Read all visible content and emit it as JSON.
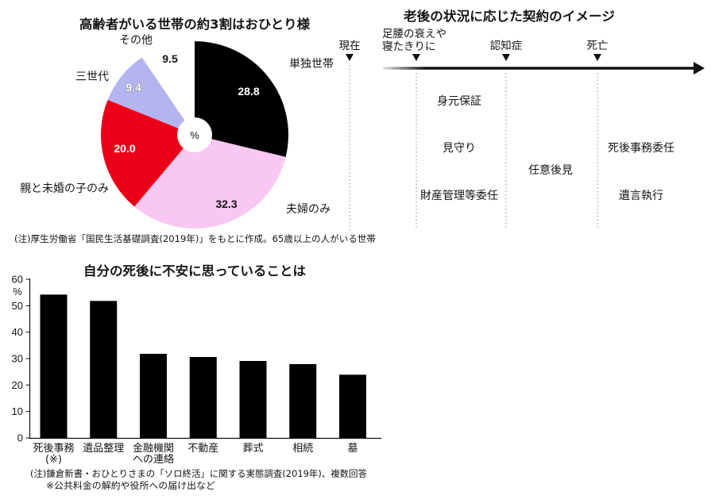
{
  "chart_data": [
    {
      "type": "pie",
      "title": "高齢者がいる世帯の約3割はおひとり様",
      "unit": "%",
      "labels": [
        "単独世帯",
        "夫婦のみ",
        "親と未婚の子のみ",
        "三世代",
        "その他"
      ],
      "values": [
        28.8,
        32.3,
        20.0,
        9.4,
        9.5
      ],
      "data_labels": [
        "28.8",
        "32.3",
        "20.0",
        "9.4",
        "9.5"
      ],
      "colors": [
        "#000000",
        "#f8c7f2",
        "#ec0018",
        "#b4b4f0",
        "#ffffff"
      ],
      "note": "(注)厚生労働省「国民生活基礎調査(2019年)」をもとに作成。65歳以上の人がいる世帯"
    },
    {
      "type": "bar",
      "title": "自分の死後に不安に思っていることは",
      "categories": [
        [
          "死後事務",
          "(※)"
        ],
        [
          "遺品整理"
        ],
        [
          "金融機関",
          "への連絡"
        ],
        [
          "不動産"
        ],
        [
          "葬式"
        ],
        [
          "相続"
        ],
        [
          "墓"
        ]
      ],
      "values": [
        54.2,
        51.8,
        31.8,
        30.6,
        29.1,
        27.9,
        23.9
      ],
      "ylabel": "%",
      "ylim": [
        0,
        60
      ],
      "yticks": [
        0,
        10,
        20,
        30,
        40,
        50,
        60
      ],
      "grid": false,
      "bar_color": "#000000",
      "notes": [
        "(注)鎌倉新書・おひとりさまの「ソロ終活」に関する実態調査(2019年)、複数回答",
        "※公共料金の解約や役所への届け出など"
      ]
    }
  ],
  "contract_timeline": {
    "title": "老後の状況に応じた契約のイメージ",
    "stages": [
      [
        "現在"
      ],
      [
        "足腰の衰えや",
        "寝たきりに"
      ],
      [
        "認知症"
      ],
      [
        "死亡"
      ]
    ],
    "columns": [
      [
        "身元保証",
        "見守り",
        "財産管理等委任"
      ],
      [
        "任意後見"
      ],
      [
        "死後事務委任",
        "遺言執行"
      ]
    ]
  }
}
